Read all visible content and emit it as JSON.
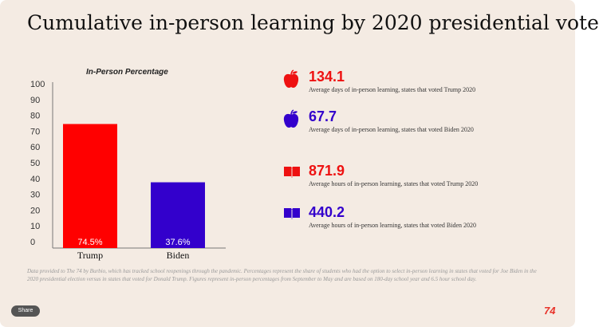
{
  "title": "Cumulative in-person learning by 2020 presidential vote",
  "chart_data": {
    "type": "bar",
    "title": "In-Person Percentage",
    "categories": [
      "Trump",
      "Biden"
    ],
    "values": [
      74.5,
      37.6
    ],
    "value_labels": [
      "74.5%",
      "37.6%"
    ],
    "colors": [
      "#ff0000",
      "#3300cc"
    ],
    "ylim": [
      0,
      100
    ],
    "yticks": [
      0,
      10,
      20,
      30,
      40,
      50,
      60,
      70,
      80,
      90,
      100
    ],
    "grid": false
  },
  "stats": [
    {
      "value": "134.1",
      "description": "Average days of in-person learning, states that voted Trump 2020",
      "color": "#ee1111",
      "icon": "apple-icon"
    },
    {
      "value": "67.7",
      "description": "Average days of in-person learning, states that voted Biden 2020",
      "color": "#3300cc",
      "icon": "apple-icon"
    },
    {
      "value": "871.9",
      "description": "Average hours of in-person learning, states that voted Trump 2020",
      "color": "#ee1111",
      "icon": "book-icon"
    },
    {
      "value": "440.2",
      "description": "Average hours of in-person learning, states that voted Biden 2020",
      "color": "#3300cc",
      "icon": "book-icon"
    }
  ],
  "footnote": "Data provided to The 74 by Burbio, which has tracked school reopenings through the pandemic. Percentages represent the share of students who had the option to select in-person learning in states that voted for Joe Biden in the 2020 presidential election versus in states that voted for Donald Trump. Figures represent in-person percentages from September to May and are based on 180-day school year and 6.5 hour school day.",
  "share_label": "Share",
  "logo_text": "74"
}
